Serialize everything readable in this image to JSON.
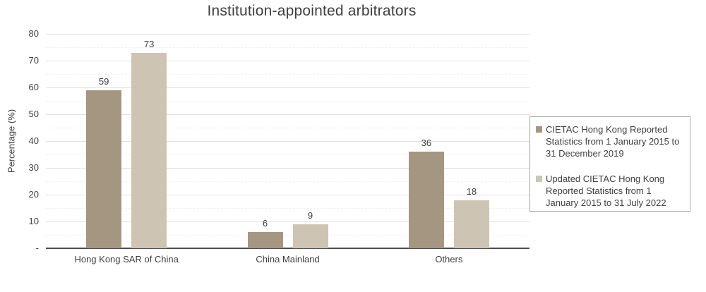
{
  "title": "Institution-appointed arbitrators",
  "chart_data": {
    "type": "bar",
    "title": "Institution-appointed arbitrators",
    "categories": [
      "Hong Kong SAR of China",
      "China Mainland",
      "Others"
    ],
    "series": [
      {
        "name": "CIETAC Hong Kong Reported Statistics from 1 January 2015 to 31 December 2019",
        "color": "#a49680",
        "values": [
          59,
          6,
          36
        ]
      },
      {
        "name": "Updated CIETAC Hong Kong Reported Statistics from 1 January 2015 to 31 July 2022",
        "color": "#cdc4b4",
        "values": [
          73,
          9,
          18
        ]
      }
    ],
    "ylabel": "Percentage (%)",
    "xlabel": "",
    "ylim": [
      0,
      80
    ],
    "ytick_interval": 10,
    "yticks": [
      "80",
      "70",
      "60",
      "50",
      "40",
      "30",
      "20",
      "10",
      "-"
    ],
    "grid": true,
    "data_labels": true,
    "legend_position": "right"
  },
  "colors": {
    "background": "#ffffff",
    "text": "#404040",
    "gridline_major": "#e2e0de",
    "gridline_minor": "#efedeb",
    "axis_line": "#4d4d4d",
    "legend_border": "#a6a6a6"
  }
}
